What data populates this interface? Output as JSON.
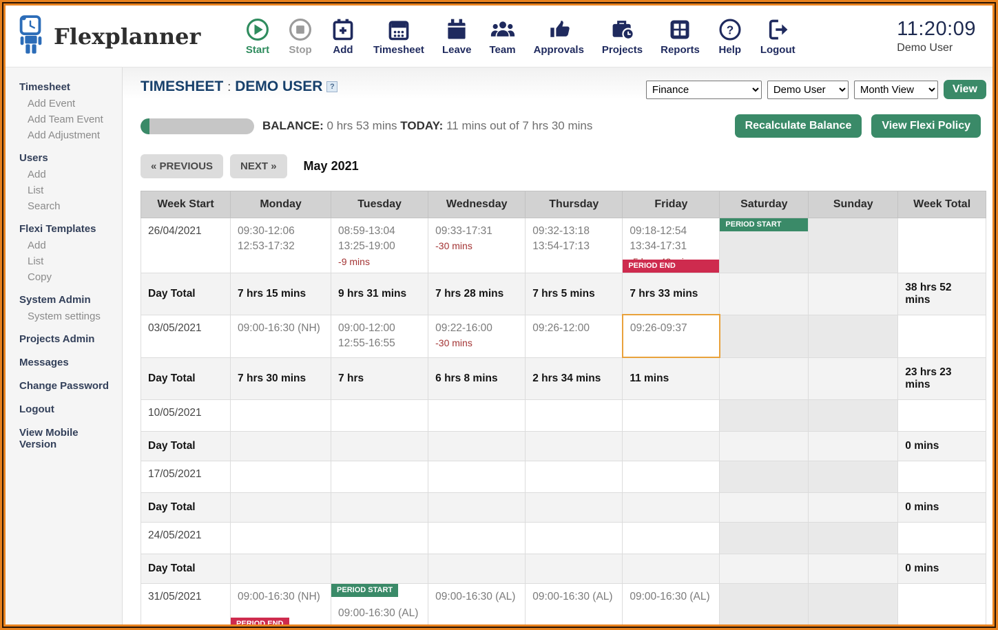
{
  "app": {
    "name": "Flexplanner",
    "time": "11:20:09",
    "user": "Demo User"
  },
  "toolbar": [
    {
      "name": "start",
      "label": "Start"
    },
    {
      "name": "stop",
      "label": "Stop"
    },
    {
      "name": "add",
      "label": "Add"
    },
    {
      "name": "timesheet",
      "label": "Timesheet"
    },
    {
      "name": "leave",
      "label": "Leave"
    },
    {
      "name": "team",
      "label": "Team"
    },
    {
      "name": "approvals",
      "label": "Approvals"
    },
    {
      "name": "projects",
      "label": "Projects"
    },
    {
      "name": "reports",
      "label": "Reports"
    },
    {
      "name": "help",
      "label": "Help"
    },
    {
      "name": "logout",
      "label": "Logout"
    }
  ],
  "sidebar": {
    "sections": [
      {
        "title": "Timesheet",
        "items": [
          "Add Event",
          "Add Team Event",
          "Add Adjustment"
        ]
      },
      {
        "title": "Users",
        "items": [
          "Add",
          "List",
          "Search"
        ]
      },
      {
        "title": "Flexi Templates",
        "items": [
          "Add",
          "List",
          "Copy"
        ]
      },
      {
        "title": "System Admin",
        "items": [
          "System settings"
        ]
      },
      {
        "title": "Projects Admin",
        "items": []
      },
      {
        "title": "Messages",
        "items": []
      },
      {
        "title": "Change Password",
        "items": []
      },
      {
        "title": "Logout",
        "items": []
      },
      {
        "title": "View Mobile Version",
        "items": []
      }
    ]
  },
  "page": {
    "title": "TIMESHEET",
    "separator": ":",
    "subtitle": "DEMO USER",
    "help_icon": "?"
  },
  "filters": {
    "department": "Finance",
    "user": "Demo User",
    "view": "Month View",
    "view_button": "View"
  },
  "balance": {
    "label": "BALANCE:",
    "value": "0 hrs 53 mins",
    "today_label": "TODAY:",
    "today_value": "11 mins out of 7 hrs 30 mins",
    "progress_pct": 8
  },
  "actions": {
    "recalculate": "Recalculate Balance",
    "policy": "View Flexi Policy"
  },
  "nav": {
    "previous": "« PREVIOUS",
    "next": "NEXT »",
    "month": "May 2021"
  },
  "colors": {
    "accent_green": "#3A8A68",
    "badge_red": "#CE2B4E",
    "deficit_red": "#A33333",
    "navy": "#1F2A5E",
    "today_border": "#E9A13B",
    "page_border": "#E8821E"
  },
  "table": {
    "headers": [
      "Week Start",
      "Monday",
      "Tuesday",
      "Wednesday",
      "Thursday",
      "Friday",
      "Saturday",
      "Sunday",
      "Week Total"
    ],
    "rows": [
      {
        "type": "week",
        "date": "26/04/2021",
        "week_total": "",
        "days": [
          {
            "times": [
              "09:30-12:06",
              "12:53-17:32"
            ]
          },
          {
            "times": [
              "08:59-13:04",
              "13:25-19:00"
            ],
            "deficit": "-9 mins"
          },
          {
            "times": [
              "09:33-17:31"
            ],
            "deficit": "-30 mins"
          },
          {
            "times": [
              "09:32-13:18",
              "13:54-17:13"
            ]
          },
          {
            "times": [
              "09:18-12:54",
              "13:34-17:31"
            ],
            "deficit": "-5 hrs -48 mins",
            "badge_bottom": {
              "text": "PERIOD END",
              "wide": true
            }
          },
          {
            "times": [],
            "badge_top": {
              "text": "PERIOD START",
              "wide": true
            }
          },
          {
            "times": []
          }
        ]
      },
      {
        "type": "daytotal",
        "label": "Day Total",
        "values": [
          "7 hrs 15 mins",
          "9 hrs 31 mins",
          "7 hrs 28 mins",
          "7 hrs 5 mins",
          "7 hrs 33 mins",
          "",
          ""
        ],
        "week_total": "38 hrs 52 mins"
      },
      {
        "type": "week",
        "date": "03/05/2021",
        "week_total": "",
        "days": [
          {
            "times": [
              "09:00-16:30 (NH)"
            ]
          },
          {
            "times": [
              "09:00-12:00",
              "12:55-16:55"
            ]
          },
          {
            "times": [
              "09:22-16:00"
            ],
            "deficit": "-30 mins"
          },
          {
            "times": [
              "09:26-12:00"
            ]
          },
          {
            "times": [
              "09:26-09:37"
            ],
            "today": true
          },
          {
            "times": []
          },
          {
            "times": []
          }
        ]
      },
      {
        "type": "daytotal",
        "label": "Day Total",
        "values": [
          "7 hrs 30 mins",
          "7 hrs",
          "6 hrs 8 mins",
          "2 hrs 34 mins",
          "11 mins",
          "",
          ""
        ],
        "week_total": "23 hrs 23 mins"
      },
      {
        "type": "week",
        "date": "10/05/2021",
        "week_total": "",
        "days": [
          {
            "times": []
          },
          {
            "times": []
          },
          {
            "times": []
          },
          {
            "times": []
          },
          {
            "times": []
          },
          {
            "times": []
          },
          {
            "times": []
          }
        ]
      },
      {
        "type": "daytotal",
        "label": "Day Total",
        "values": [
          "",
          "",
          "",
          "",
          "",
          "",
          ""
        ],
        "week_total": "0 mins"
      },
      {
        "type": "week",
        "date": "17/05/2021",
        "week_total": "",
        "days": [
          {
            "times": []
          },
          {
            "times": []
          },
          {
            "times": []
          },
          {
            "times": []
          },
          {
            "times": []
          },
          {
            "times": []
          },
          {
            "times": []
          }
        ]
      },
      {
        "type": "daytotal",
        "label": "Day Total",
        "values": [
          "",
          "",
          "",
          "",
          "",
          "",
          ""
        ],
        "week_total": "0 mins"
      },
      {
        "type": "week",
        "date": "24/05/2021",
        "week_total": "",
        "days": [
          {
            "times": []
          },
          {
            "times": []
          },
          {
            "times": []
          },
          {
            "times": []
          },
          {
            "times": []
          },
          {
            "times": []
          },
          {
            "times": []
          }
        ]
      },
      {
        "type": "daytotal",
        "label": "Day Total",
        "values": [
          "",
          "",
          "",
          "",
          "",
          "",
          ""
        ],
        "week_total": "0 mins"
      },
      {
        "type": "week",
        "date": "31/05/2021",
        "week_total": "",
        "days": [
          {
            "times": [
              "09:00-16:30 (NH)"
            ],
            "badge_bottom": {
              "text": "PERIOD END",
              "wide": false
            },
            "tall": true
          },
          {
            "times": [
              "09:00-16:30 (AL)"
            ],
            "badge_top": {
              "text": "PERIOD START",
              "wide": false
            }
          },
          {
            "times": [
              "09:00-16:30 (AL)"
            ]
          },
          {
            "times": [
              "09:00-16:30 (AL)"
            ]
          },
          {
            "times": [
              "09:00-16:30 (AL)"
            ]
          },
          {
            "times": []
          },
          {
            "times": []
          }
        ]
      }
    ]
  }
}
